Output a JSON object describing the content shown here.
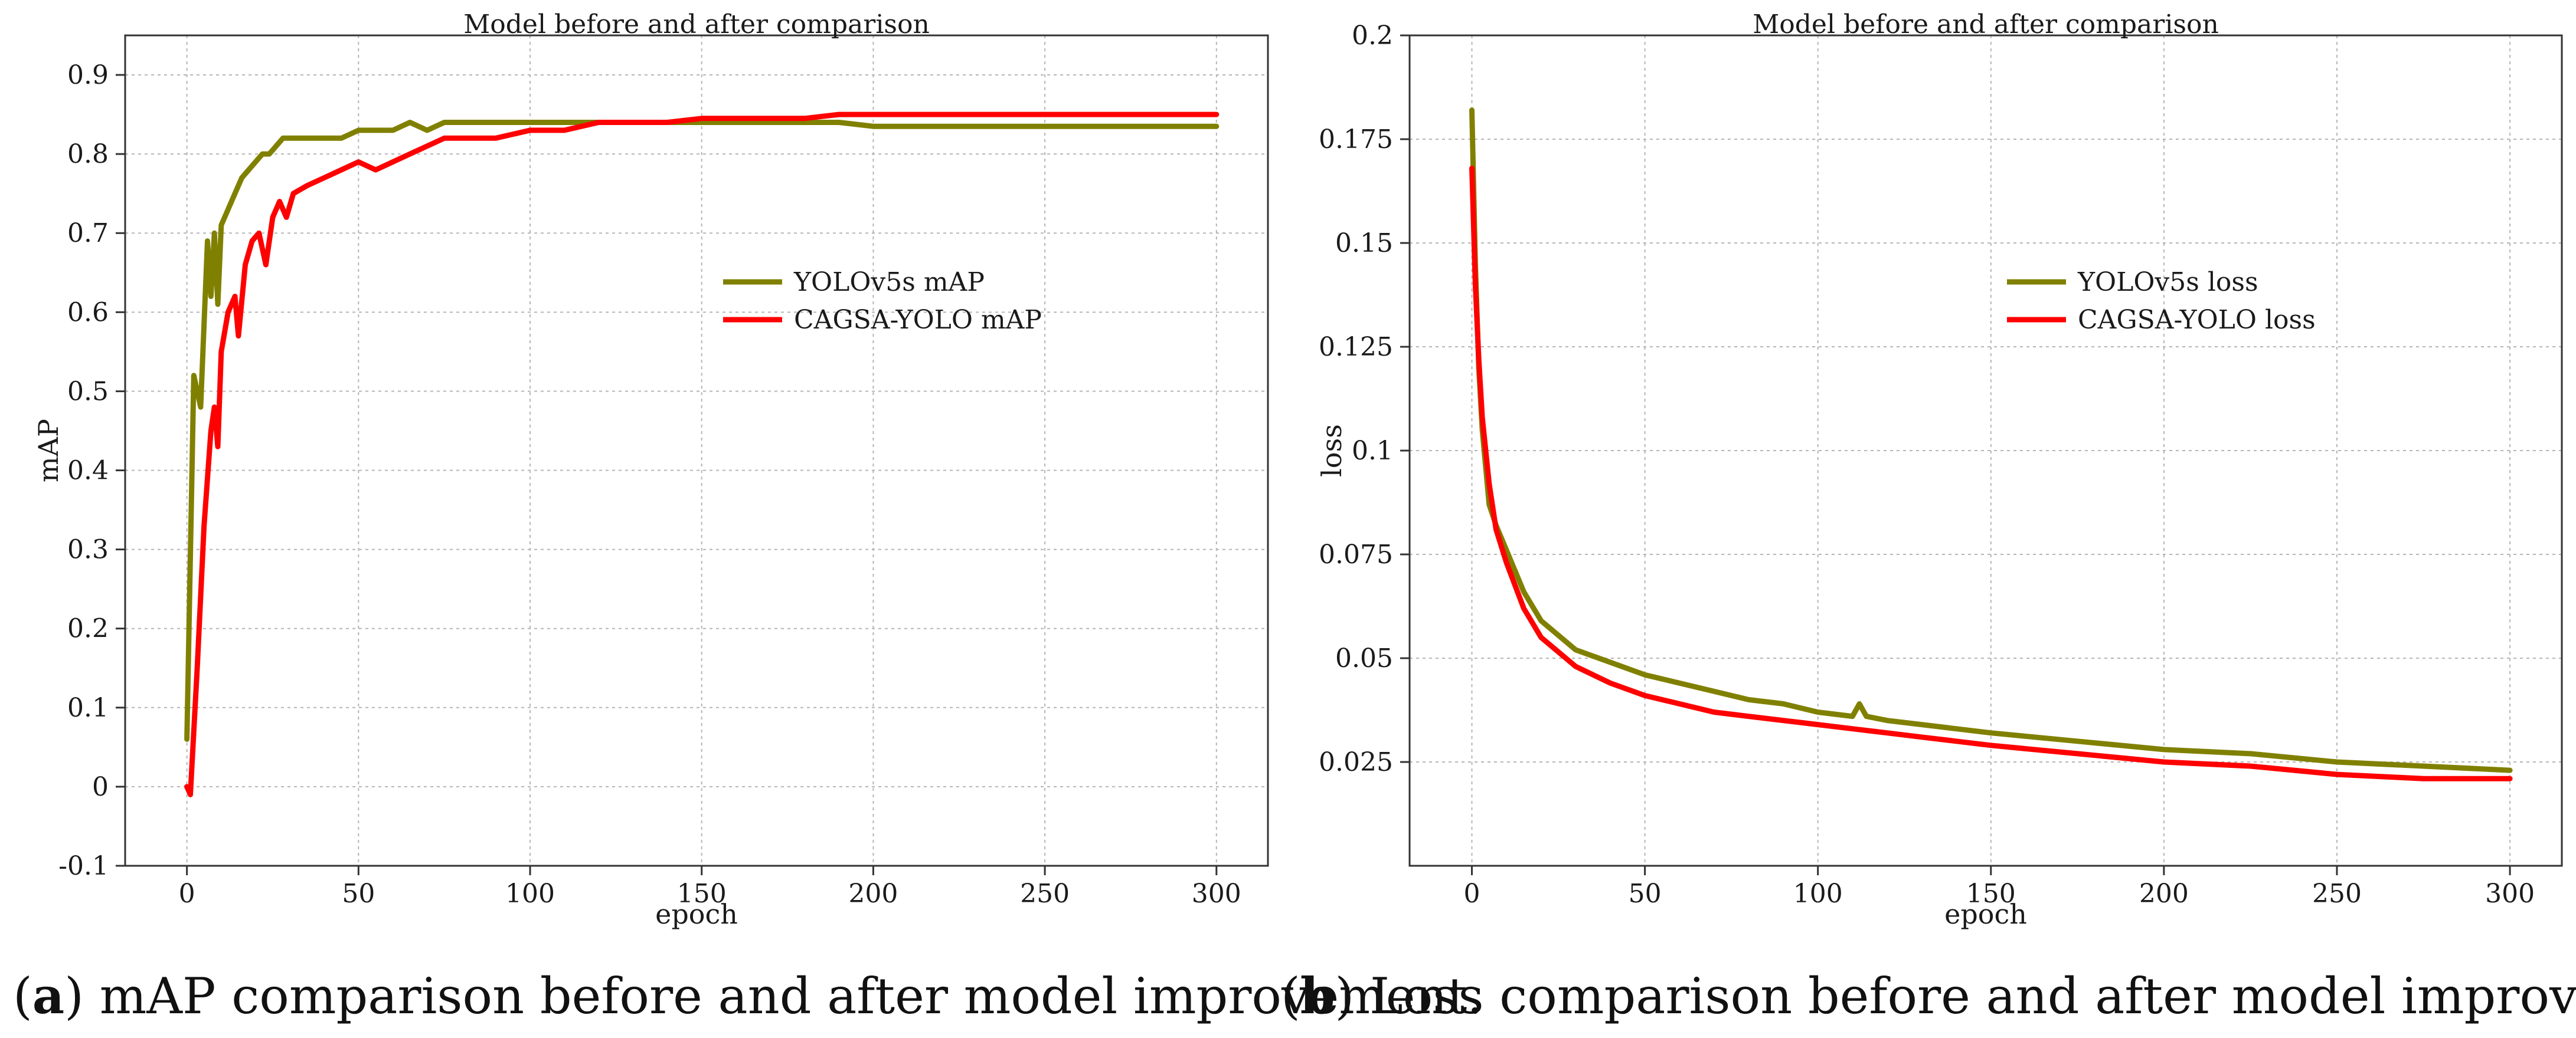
{
  "chart_data": [
    {
      "type": "line",
      "title": "Model before and after comparison",
      "xlabel": "epoch",
      "ylabel": "mAP",
      "xlim": [
        -18,
        315
      ],
      "ylim": [
        -0.1,
        0.95
      ],
      "xticks": [
        0,
        50,
        100,
        150,
        200,
        250,
        300
      ],
      "yticks": [
        -0.1,
        0,
        0.1,
        0.2,
        0.3,
        0.4,
        0.5,
        0.6,
        0.7,
        0.8,
        0.9
      ],
      "ytick_labels": [
        "-0.1",
        "0",
        "0.1",
        "0.2",
        "0.3",
        "0.4",
        "0.5",
        "0.6",
        "0.7",
        "0.8",
        "0.9"
      ],
      "grid": true,
      "legend_position": "center-right",
      "series": [
        {
          "name": "YOLOv5s mAP",
          "color": "#808000",
          "x": [
            0,
            2,
            4,
            6,
            7,
            8,
            9,
            10,
            12,
            14,
            16,
            18,
            20,
            22,
            24,
            26,
            28,
            30,
            35,
            40,
            45,
            50,
            55,
            60,
            65,
            70,
            75,
            80,
            90,
            100,
            110,
            120,
            130,
            140,
            150,
            160,
            170,
            180,
            190,
            200,
            220,
            250,
            280,
            300
          ],
          "y": [
            0.06,
            0.52,
            0.48,
            0.69,
            0.62,
            0.7,
            0.61,
            0.71,
            0.73,
            0.75,
            0.77,
            0.78,
            0.79,
            0.8,
            0.8,
            0.81,
            0.82,
            0.82,
            0.82,
            0.82,
            0.82,
            0.83,
            0.83,
            0.83,
            0.84,
            0.83,
            0.84,
            0.84,
            0.84,
            0.84,
            0.84,
            0.84,
            0.84,
            0.84,
            0.84,
            0.84,
            0.84,
            0.84,
            0.84,
            0.835,
            0.835,
            0.835,
            0.835,
            0.835
          ]
        },
        {
          "name": "CAGSA-YOLO mAP",
          "color": "#ff0000",
          "x": [
            0,
            1,
            3,
            5,
            7,
            8,
            9,
            10,
            12,
            14,
            15,
            17,
            19,
            21,
            23,
            25,
            27,
            29,
            31,
            35,
            40,
            45,
            50,
            55,
            60,
            65,
            70,
            75,
            80,
            90,
            100,
            110,
            120,
            130,
            140,
            150,
            160,
            170,
            180,
            190,
            200,
            220,
            250,
            280,
            300
          ],
          "y": [
            0.0,
            -0.01,
            0.15,
            0.33,
            0.45,
            0.48,
            0.43,
            0.55,
            0.6,
            0.62,
            0.57,
            0.66,
            0.69,
            0.7,
            0.66,
            0.72,
            0.74,
            0.72,
            0.75,
            0.76,
            0.77,
            0.78,
            0.79,
            0.78,
            0.79,
            0.8,
            0.81,
            0.82,
            0.82,
            0.82,
            0.83,
            0.83,
            0.84,
            0.84,
            0.84,
            0.845,
            0.845,
            0.845,
            0.845,
            0.85,
            0.85,
            0.85,
            0.85,
            0.85,
            0.85
          ]
        }
      ]
    },
    {
      "type": "line",
      "title": "Model before and after comparison",
      "xlabel": "epoch",
      "ylabel": "loss",
      "xlim": [
        -18,
        315
      ],
      "ylim": [
        0,
        0.2
      ],
      "xticks": [
        0,
        50,
        100,
        150,
        200,
        250,
        300
      ],
      "yticks": [
        0.025,
        0.05,
        0.075,
        0.1,
        0.125,
        0.15,
        0.175,
        0.2
      ],
      "ytick_labels": [
        "0.025",
        "0.05",
        "0.075",
        "0.1",
        "0.125",
        "0.15",
        "0.175",
        "0.2"
      ],
      "grid": true,
      "legend_position": "center-right",
      "series": [
        {
          "name": "YOLOv5s loss",
          "color": "#808000",
          "x": [
            0,
            1,
            2,
            3,
            5,
            7,
            10,
            15,
            20,
            30,
            40,
            50,
            60,
            70,
            80,
            90,
            100,
            110,
            112,
            114,
            120,
            130,
            140,
            150,
            175,
            200,
            225,
            250,
            275,
            300
          ],
          "y": [
            0.182,
            0.145,
            0.12,
            0.105,
            0.087,
            0.082,
            0.076,
            0.066,
            0.059,
            0.052,
            0.049,
            0.046,
            0.044,
            0.042,
            0.04,
            0.039,
            0.037,
            0.036,
            0.039,
            0.036,
            0.035,
            0.034,
            0.033,
            0.032,
            0.03,
            0.028,
            0.027,
            0.025,
            0.024,
            0.023
          ]
        },
        {
          "name": "CAGSA-YOLO loss",
          "color": "#ff0000",
          "x": [
            0,
            1,
            2,
            3,
            5,
            7,
            10,
            15,
            20,
            30,
            40,
            50,
            60,
            70,
            80,
            90,
            100,
            110,
            120,
            130,
            140,
            150,
            175,
            200,
            225,
            250,
            275,
            300
          ],
          "y": [
            0.168,
            0.14,
            0.122,
            0.108,
            0.092,
            0.081,
            0.073,
            0.062,
            0.055,
            0.048,
            0.044,
            0.041,
            0.039,
            0.037,
            0.036,
            0.035,
            0.034,
            0.033,
            0.032,
            0.031,
            0.03,
            0.029,
            0.027,
            0.025,
            0.024,
            0.022,
            0.021,
            0.021
          ]
        }
      ]
    }
  ],
  "captions": [
    {
      "open": "(",
      "letter": "a",
      "text": ") mAP comparison before and after model improvement."
    },
    {
      "open": "(",
      "letter": "b",
      "text": ") Loss comparison before and after model improvement."
    }
  ]
}
